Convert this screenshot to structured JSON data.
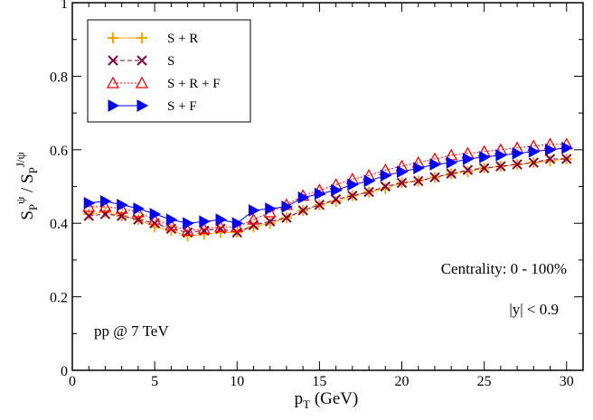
{
  "chart_data": {
    "type": "line",
    "xlabel": "p_T (GeV)",
    "ylabel": "S_P^ψ / S_P^J/ψ",
    "xlim": [
      0,
      31
    ],
    "ylim": [
      0,
      1
    ],
    "x_ticks": [
      "0",
      "5",
      "10",
      "15",
      "20",
      "25",
      "30"
    ],
    "y_ticks": [
      "0",
      "0.2",
      "0.4",
      "0.6",
      "0.8",
      "1"
    ],
    "x": [
      1,
      2,
      3,
      4,
      5,
      6,
      7,
      8,
      9,
      10,
      11,
      12,
      13,
      14,
      15,
      16,
      17,
      18,
      19,
      20,
      21,
      22,
      23,
      24,
      25,
      26,
      27,
      28,
      29,
      30
    ],
    "series": [
      {
        "name": "S + R",
        "color": "#ffa500",
        "marker": "plus",
        "line": "solid",
        "values": [
          0.425,
          0.43,
          0.42,
          0.41,
          0.39,
          0.38,
          0.365,
          0.37,
          0.375,
          0.375,
          0.39,
          0.4,
          0.415,
          0.435,
          0.45,
          0.46,
          0.475,
          0.485,
          0.495,
          0.51,
          0.515,
          0.525,
          0.535,
          0.54,
          0.55,
          0.555,
          0.56,
          0.565,
          0.57,
          0.575
        ]
      },
      {
        "name": "S",
        "color": "#800040",
        "marker": "x",
        "line": "dashed",
        "values": [
          0.42,
          0.425,
          0.42,
          0.41,
          0.4,
          0.385,
          0.375,
          0.38,
          0.385,
          0.375,
          0.395,
          0.405,
          0.415,
          0.435,
          0.45,
          0.465,
          0.475,
          0.485,
          0.5,
          0.51,
          0.515,
          0.525,
          0.535,
          0.545,
          0.55,
          0.555,
          0.56,
          0.565,
          0.575,
          0.575
        ]
      },
      {
        "name": "S + R + F",
        "color": "#ff0000",
        "marker": "triangle-up",
        "line": "dotted",
        "values": [
          0.445,
          0.445,
          0.44,
          0.43,
          0.41,
          0.395,
          0.38,
          0.385,
          0.39,
          0.39,
          0.41,
          0.43,
          0.45,
          0.475,
          0.49,
          0.505,
          0.52,
          0.53,
          0.545,
          0.555,
          0.565,
          0.575,
          0.585,
          0.59,
          0.595,
          0.6,
          0.605,
          0.61,
          0.615,
          0.615
        ]
      },
      {
        "name": "S + F",
        "color": "#0000ff",
        "marker": "triangle-right",
        "line": "solid",
        "values": [
          0.455,
          0.46,
          0.45,
          0.44,
          0.425,
          0.41,
          0.4,
          0.405,
          0.41,
          0.4,
          0.435,
          0.44,
          0.445,
          0.47,
          0.48,
          0.49,
          0.505,
          0.515,
          0.53,
          0.54,
          0.55,
          0.56,
          0.565,
          0.575,
          0.58,
          0.585,
          0.59,
          0.595,
          0.6,
          0.605
        ]
      }
    ],
    "legend": {
      "placement": "top-left"
    },
    "annotations": {
      "centrality": "Centrality: 0 - 100%",
      "rapidity": "|y| < 0.9",
      "system": "pp @ 7 TeV"
    },
    "axis_text": {
      "x_main": "p",
      "x_sub": "T",
      "x_rest": " (GeV)",
      "y_s1": "S",
      "y_sub1": "P",
      "y_sup1": "ψ",
      "y_slash": " / ",
      "y_s2": "S",
      "y_sub2": "P",
      "y_sup2": "J/ψ"
    },
    "grid": false
  }
}
